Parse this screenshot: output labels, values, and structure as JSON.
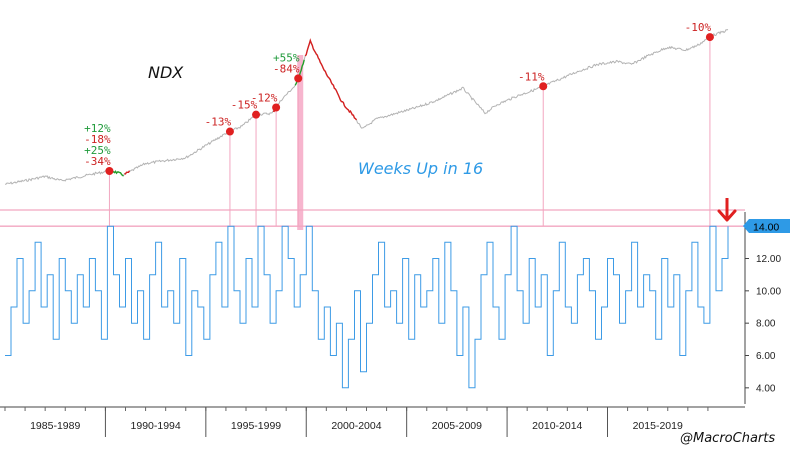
{
  "chart_data": [
    {
      "type": "line",
      "series": [
        {
          "name": "NDX",
          "x": [
            1985.0,
            1986.0,
            1987.0,
            1987.8,
            1988.5,
            1989.5,
            1990.3,
            1990.9,
            1992.0,
            1993.0,
            1994.0,
            1995.0,
            1996.0,
            1996.8,
            1997.5,
            1998.3,
            1998.8,
            1999.5,
            2000.2,
            2000.8,
            2001.3,
            2001.8,
            2002.3,
            2002.8,
            2003.5,
            2004.5,
            2005.5,
            2006.5,
            2007.8,
            2008.9,
            2009.5,
            2010.5,
            2011.5,
            2012.5,
            2013.5,
            2014.5,
            2015.5,
            2016.2,
            2017.0,
            2018.0,
            2018.9,
            2019.5,
            2020.2,
            2020.8,
            2021.0
          ],
          "values": [
            1,
            6,
            12,
            6,
            10,
            16,
            20,
            14,
            30,
            34,
            38,
            55,
            72,
            82,
            98,
            100,
            120,
            140,
            200,
            165,
            140,
            115,
            98,
            78,
            92,
            100,
            108,
            118,
            135,
            100,
            112,
            124,
            134,
            146,
            158,
            168,
            172,
            168,
            180,
            192,
            188,
            195,
            208,
            214,
            216
          ]
        }
      ],
      "annotations": [
        {
          "x": 1990.2,
          "labels": [
            "+12%",
            "-18%",
            "+25%",
            "-34%"
          ]
        },
        {
          "x": 1996.2,
          "labels": [
            "-13%"
          ]
        },
        {
          "x": 1997.5,
          "labels": [
            "-15%"
          ]
        },
        {
          "x": 1998.5,
          "labels": [
            "-12%"
          ]
        },
        {
          "x": 1999.6,
          "labels": [
            "+55%",
            "-84%"
          ]
        },
        {
          "x": 2011.8,
          "labels": [
            "-11%"
          ]
        },
        {
          "x": 2020.1,
          "labels": [
            "-10%"
          ]
        }
      ]
    },
    {
      "type": "line",
      "title": "Weeks Up in 16",
      "ylim": [
        3,
        15
      ],
      "series": [
        {
          "name": "Weeks Up in 16",
          "x": [
            1985.0,
            1985.3,
            1985.6,
            1985.9,
            1986.2,
            1986.5,
            1986.8,
            1987.1,
            1987.4,
            1987.7,
            1988.0,
            1988.3,
            1988.6,
            1988.9,
            1989.2,
            1989.5,
            1989.8,
            1990.1,
            1990.4,
            1990.7,
            1991.0,
            1991.3,
            1991.6,
            1991.9,
            1992.2,
            1992.5,
            1992.8,
            1993.1,
            1993.4,
            1993.7,
            1994.0,
            1994.3,
            1994.6,
            1994.9,
            1995.2,
            1995.5,
            1995.8,
            1996.1,
            1996.4,
            1996.7,
            1997.0,
            1997.3,
            1997.6,
            1997.9,
            1998.2,
            1998.5,
            1998.8,
            1999.1,
            1999.4,
            1999.7,
            2000.0,
            2000.3,
            2000.6,
            2000.9,
            2001.2,
            2001.5,
            2001.8,
            2002.1,
            2002.4,
            2002.7,
            2003.0,
            2003.3,
            2003.6,
            2003.9,
            2004.2,
            2004.5,
            2004.8,
            2005.1,
            2005.4,
            2005.7,
            2006.0,
            2006.3,
            2006.6,
            2006.9,
            2007.2,
            2007.5,
            2007.8,
            2008.1,
            2008.4,
            2008.7,
            2009.0,
            2009.3,
            2009.6,
            2009.9,
            2010.2,
            2010.5,
            2010.8,
            2011.1,
            2011.4,
            2011.7,
            2012.0,
            2012.3,
            2012.6,
            2012.9,
            2013.2,
            2013.5,
            2013.8,
            2014.1,
            2014.4,
            2014.7,
            2015.0,
            2015.3,
            2015.6,
            2015.9,
            2016.2,
            2016.5,
            2016.8,
            2017.1,
            2017.4,
            2017.7,
            2018.0,
            2018.3,
            2018.6,
            2018.9,
            2019.2,
            2019.5,
            2019.8,
            2020.1,
            2020.4,
            2020.7,
            2021.0
          ],
          "values": [
            6,
            9,
            12,
            8,
            10,
            13,
            9,
            11,
            7,
            12,
            10,
            8,
            11,
            9,
            12,
            10,
            7,
            14,
            11,
            9,
            12,
            8,
            10,
            7,
            11,
            13,
            9,
            10,
            8,
            12,
            6,
            10,
            9,
            7,
            11,
            13,
            9,
            14,
            10,
            8,
            12,
            9,
            14,
            11,
            8,
            10,
            14,
            12,
            9,
            11,
            14,
            10,
            7,
            9,
            6,
            8,
            4,
            7,
            10,
            5,
            8,
            11,
            13,
            9,
            10,
            8,
            12,
            7,
            11,
            9,
            10,
            12,
            8,
            13,
            10,
            6,
            9,
            4,
            7,
            11,
            13,
            9,
            7,
            11,
            14,
            10,
            8,
            12,
            9,
            11,
            6,
            10,
            13,
            9,
            8,
            11,
            12,
            10,
            7,
            9,
            12,
            11,
            8,
            10,
            13,
            9,
            11,
            10,
            7,
            12,
            9,
            11,
            6,
            10,
            13,
            9,
            8,
            14,
            10,
            12,
            14
          ]
        }
      ],
      "threshold_lines": [
        14,
        15
      ],
      "current_value_label": "14.00",
      "yticks": [
        "14.00",
        "12.00",
        "10.00",
        "8.00",
        "6.00",
        "4.00"
      ]
    }
  ],
  "labels": {
    "ndx": "NDX",
    "weeks": "Weeks Up in 16"
  },
  "xticks": [
    "1985-1989",
    "1990-1994",
    "1995-1999",
    "2000-2004",
    "2005-2009",
    "2010-2014",
    "2015-2019"
  ],
  "credit": "@MacroCharts",
  "colors": {
    "ndx_line": "#b3b3b3",
    "up_segment": "#22a02a",
    "down_segment": "#d42020",
    "annotation_up": "#1f9a3a",
    "annotation_down": "#cc2222",
    "marker": "#e02020",
    "weeks_line": "#3d9be6",
    "vertical_line": "#f2a6c0",
    "threshold_line": "#f2a6c0",
    "highlight_band": "#f6a8c6",
    "value_tag": "#2e9ae6",
    "arrow": "#e02020"
  }
}
